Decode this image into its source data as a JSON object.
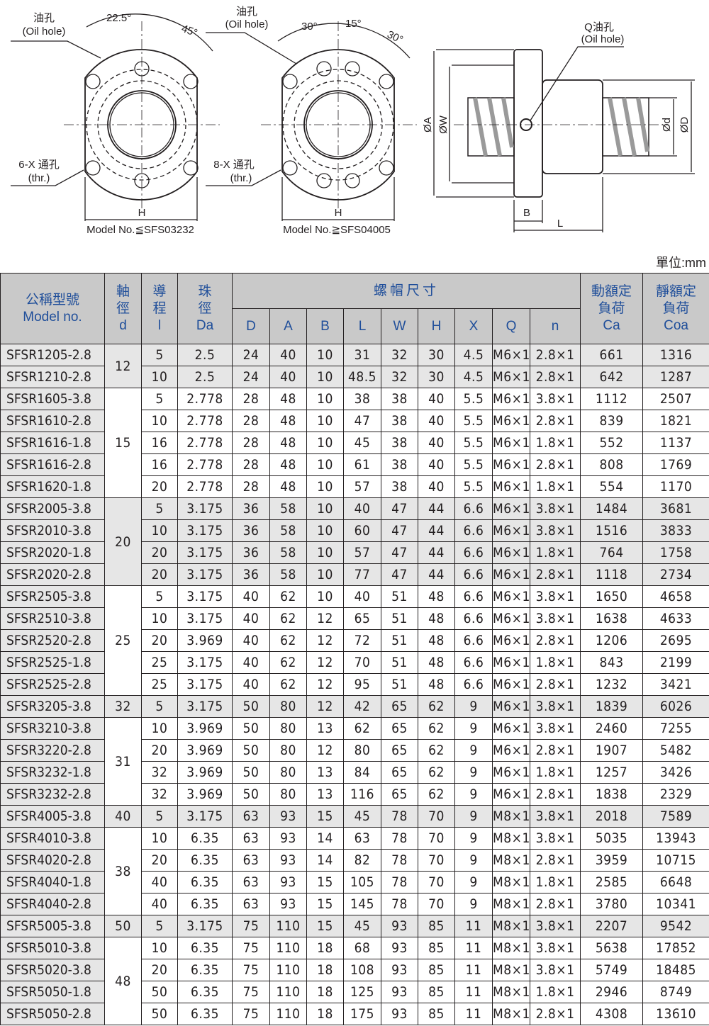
{
  "unit_label": "單位:mm",
  "diagrams": {
    "left": {
      "oil_hole_cn": "油孔",
      "oil_hole_en": "(Oil hole)",
      "angle1": "22.5°",
      "angle2": "45°",
      "holes_cn": "6-X 通孔",
      "holes_en": "(thr.)",
      "dim": "H",
      "caption": "Model No.≦SFS03232"
    },
    "middle": {
      "oil_hole_cn": "油孔",
      "oil_hole_en": "(Oil hole)",
      "angle1": "30°",
      "angle2": "15°",
      "angle3": "30°",
      "holes_cn": "8-X 通孔",
      "holes_en": "(thr.)",
      "dim": "H",
      "caption": "Model No.≧SFS04005"
    },
    "right": {
      "q_oil_cn": "Q油孔",
      "q_oil_en": "(Oil hole)",
      "dA": "ØA",
      "dW": "ØW",
      "dd": "Ød",
      "dD": "ØD",
      "dB": "B",
      "dL": "L"
    }
  },
  "table": {
    "headers": {
      "model_cn": "公稱型號",
      "model_en": "Model no.",
      "d_cn": "軸徑",
      "d": "d",
      "l_cn": "導程",
      "l": "l",
      "da_cn": "珠徑",
      "da": "Da",
      "nut_cn": "螺帽尺寸",
      "sub": [
        "D",
        "A",
        "B",
        "L",
        "W",
        "H",
        "X",
        "Q",
        "n"
      ],
      "ca_cn": "動額定負荷",
      "ca": "Ca",
      "coa_cn": "靜額定負荷",
      "coa": "Coa"
    },
    "groups": [
      {
        "d": "12",
        "rows": [
          [
            "SFSR1205-2.8",
            "5",
            "2.5",
            "24",
            "40",
            "10",
            "31",
            "32",
            "30",
            "4.5",
            "M6×1",
            "2.8×1",
            "661",
            "1316"
          ],
          [
            "SFSR1210-2.8",
            "10",
            "2.5",
            "24",
            "40",
            "10",
            "48.5",
            "32",
            "30",
            "4.5",
            "M6×1",
            "2.8×1",
            "642",
            "1287"
          ]
        ]
      },
      {
        "d": "15",
        "rows": [
          [
            "SFSR1605-3.8",
            "5",
            "2.778",
            "28",
            "48",
            "10",
            "38",
            "38",
            "40",
            "5.5",
            "M6×1",
            "3.8×1",
            "1112",
            "2507"
          ],
          [
            "SFSR1610-2.8",
            "10",
            "2.778",
            "28",
            "48",
            "10",
            "47",
            "38",
            "40",
            "5.5",
            "M6×1",
            "2.8×1",
            "839",
            "1821"
          ],
          [
            "SFSR1616-1.8",
            "16",
            "2.778",
            "28",
            "48",
            "10",
            "45",
            "38",
            "40",
            "5.5",
            "M6×1",
            "1.8×1",
            "552",
            "1137"
          ],
          [
            "SFSR1616-2.8",
            "16",
            "2.778",
            "28",
            "48",
            "10",
            "61",
            "38",
            "40",
            "5.5",
            "M6×1",
            "2.8×1",
            "808",
            "1769"
          ],
          [
            "SFSR1620-1.8",
            "20",
            "2.778",
            "28",
            "48",
            "10",
            "57",
            "38",
            "40",
            "5.5",
            "M6×1",
            "1.8×1",
            "554",
            "1170"
          ]
        ]
      },
      {
        "d": "20",
        "rows": [
          [
            "SFSR2005-3.8",
            "5",
            "3.175",
            "36",
            "58",
            "10",
            "40",
            "47",
            "44",
            "6.6",
            "M6×1",
            "3.8×1",
            "1484",
            "3681"
          ],
          [
            "SFSR2010-3.8",
            "10",
            "3.175",
            "36",
            "58",
            "10",
            "60",
            "47",
            "44",
            "6.6",
            "M6×1",
            "3.8×1",
            "1516",
            "3833"
          ],
          [
            "SFSR2020-1.8",
            "20",
            "3.175",
            "36",
            "58",
            "10",
            "57",
            "47",
            "44",
            "6.6",
            "M6×1",
            "1.8×1",
            "764",
            "1758"
          ],
          [
            "SFSR2020-2.8",
            "20",
            "3.175",
            "36",
            "58",
            "10",
            "77",
            "47",
            "44",
            "6.6",
            "M6×1",
            "2.8×1",
            "1118",
            "2734"
          ]
        ]
      },
      {
        "d": "25",
        "rows": [
          [
            "SFSR2505-3.8",
            "5",
            "3.175",
            "40",
            "62",
            "10",
            "40",
            "51",
            "48",
            "6.6",
            "M6×1",
            "3.8×1",
            "1650",
            "4658"
          ],
          [
            "SFSR2510-3.8",
            "10",
            "3.175",
            "40",
            "62",
            "12",
            "65",
            "51",
            "48",
            "6.6",
            "M6×1",
            "3.8×1",
            "1638",
            "4633"
          ],
          [
            "SFSR2520-2.8",
            "20",
            "3.969",
            "40",
            "62",
            "12",
            "72",
            "51",
            "48",
            "6.6",
            "M6×1",
            "2.8×1",
            "1206",
            "2695"
          ],
          [
            "SFSR2525-1.8",
            "25",
            "3.175",
            "40",
            "62",
            "12",
            "70",
            "51",
            "48",
            "6.6",
            "M6×1",
            "1.8×1",
            "843",
            "2199"
          ],
          [
            "SFSR2525-2.8",
            "25",
            "3.175",
            "40",
            "62",
            "12",
            "95",
            "51",
            "48",
            "6.6",
            "M6×1",
            "2.8×1",
            "1232",
            "3421"
          ]
        ]
      },
      {
        "d": "32",
        "rows": [
          [
            "SFSR3205-3.8",
            "5",
            "3.175",
            "50",
            "80",
            "12",
            "42",
            "65",
            "62",
            "9",
            "M6×1",
            "3.8×1",
            "1839",
            "6026"
          ]
        ]
      },
      {
        "d": "31",
        "rows": [
          [
            "SFSR3210-3.8",
            "10",
            "3.969",
            "50",
            "80",
            "13",
            "62",
            "65",
            "62",
            "9",
            "M6×1",
            "3.8×1",
            "2460",
            "7255"
          ],
          [
            "SFSR3220-2.8",
            "20",
            "3.969",
            "50",
            "80",
            "12",
            "80",
            "65",
            "62",
            "9",
            "M6×1",
            "2.8×1",
            "1907",
            "5482"
          ],
          [
            "SFSR3232-1.8",
            "32",
            "3.969",
            "50",
            "80",
            "13",
            "84",
            "65",
            "62",
            "9",
            "M6×1",
            "1.8×1",
            "1257",
            "3426"
          ],
          [
            "SFSR3232-2.8",
            "32",
            "3.969",
            "50",
            "80",
            "13",
            "116",
            "65",
            "62",
            "9",
            "M6×1",
            "2.8×1",
            "1838",
            "2329"
          ]
        ]
      },
      {
        "d": "40",
        "rows": [
          [
            "SFSR4005-3.8",
            "5",
            "3.175",
            "63",
            "93",
            "15",
            "45",
            "78",
            "70",
            "9",
            "M8×1",
            "3.8×1",
            "2018",
            "7589"
          ]
        ]
      },
      {
        "d": "38",
        "rows": [
          [
            "SFSR4010-3.8",
            "10",
            "6.35",
            "63",
            "93",
            "14",
            "63",
            "78",
            "70",
            "9",
            "M8×1",
            "3.8×1",
            "5035",
            "13943"
          ],
          [
            "SFSR4020-2.8",
            "20",
            "6.35",
            "63",
            "93",
            "14",
            "82",
            "78",
            "70",
            "9",
            "M8×1",
            "2.8×1",
            "3959",
            "10715"
          ],
          [
            "SFSR4040-1.8",
            "40",
            "6.35",
            "63",
            "93",
            "15",
            "105",
            "78",
            "70",
            "9",
            "M8×1",
            "1.8×1",
            "2585",
            "6648"
          ],
          [
            "SFSR4040-2.8",
            "40",
            "6.35",
            "63",
            "93",
            "15",
            "145",
            "78",
            "70",
            "9",
            "M8×1",
            "2.8×1",
            "3780",
            "10341"
          ]
        ]
      },
      {
        "d": "50",
        "rows": [
          [
            "SFSR5005-3.8",
            "5",
            "3.175",
            "75",
            "110",
            "15",
            "45",
            "93",
            "85",
            "11",
            "M8×1",
            "3.8×1",
            "2207",
            "9542"
          ]
        ]
      },
      {
        "d": "48",
        "rows": [
          [
            "SFSR5010-3.8",
            "10",
            "6.35",
            "75",
            "110",
            "18",
            "68",
            "93",
            "85",
            "11",
            "M8×1",
            "3.8×1",
            "5638",
            "17852"
          ],
          [
            "SFSR5020-3.8",
            "20",
            "6.35",
            "75",
            "110",
            "18",
            "108",
            "93",
            "85",
            "11",
            "M8×1",
            "3.8×1",
            "5749",
            "18485"
          ],
          [
            "SFSR5050-1.8",
            "50",
            "6.35",
            "75",
            "110",
            "18",
            "125",
            "93",
            "85",
            "11",
            "M8×1",
            "1.8×1",
            "2946",
            "8749"
          ],
          [
            "SFSR5050-2.8",
            "50",
            "6.35",
            "75",
            "110",
            "18",
            "175",
            "93",
            "85",
            "11",
            "M8×1",
            "2.8×1",
            "4308",
            "13610"
          ]
        ]
      }
    ]
  }
}
